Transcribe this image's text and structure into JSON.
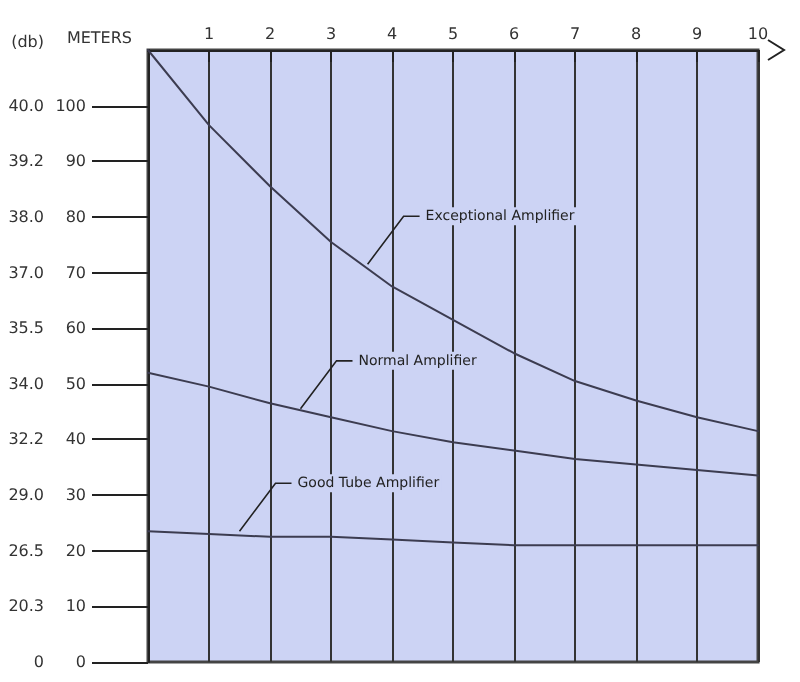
{
  "chart_data": {
    "type": "line",
    "xlabel": "METERS",
    "y2label": "(db)",
    "x": [
      0,
      1,
      2,
      3,
      4,
      5,
      6,
      7,
      8,
      9,
      10
    ],
    "series": [
      {
        "color": "#3c3c50",
        "values": [
          110,
          96.5,
          85.5,
          75.5,
          67.5,
          61.5,
          55.5,
          50.5,
          47,
          44,
          41.5
        ]
      },
      {
        "color": "#3c3c50",
        "values": [
          52,
          49.5,
          46.5,
          44,
          41.5,
          39.5,
          38,
          36.5,
          35.5,
          34.5,
          33.5
        ]
      },
      {
        "color": "#3c3c50",
        "values": [
          23.5,
          23,
          22.5,
          22.5,
          22,
          21.5,
          21,
          21,
          21,
          21,
          21
        ]
      }
    ],
    "xlim": [
      0,
      10
    ],
    "xticks": [
      1,
      2,
      3,
      4,
      5,
      6,
      7,
      8,
      9,
      10
    ],
    "ylim": [
      0,
      110
    ],
    "yticks": [
      0,
      10,
      20,
      30,
      40,
      50,
      60,
      70,
      80,
      90,
      100
    ],
    "y2_categories": [
      null,
      "40.0",
      "39.2",
      "38.0",
      "37.0",
      "35.5",
      "34.0",
      "32.2",
      "29.0",
      "26.5",
      "20.3",
      "0"
    ],
    "annotations": [
      {
        "text": "Exceptional Amplifier",
        "x": 3.6,
        "y": 71.5
      },
      {
        "text": "Normal Amplifier",
        "x": 2.5,
        "y": 45.5
      },
      {
        "text": "Good Tube Amplifier",
        "x": 1.5,
        "y": 23.5
      }
    ],
    "grid": "x",
    "marker": "none",
    "line_style": "solid"
  }
}
